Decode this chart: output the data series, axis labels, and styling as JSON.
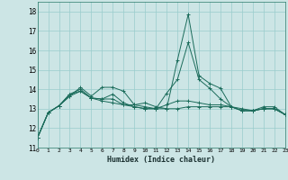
{
  "title": "",
  "xlabel": "Humidex (Indice chaleur)",
  "xlim": [
    0,
    23
  ],
  "ylim": [
    11,
    18.5
  ],
  "yticks": [
    11,
    12,
    13,
    14,
    15,
    16,
    17,
    18
  ],
  "xticks": [
    0,
    1,
    2,
    3,
    4,
    5,
    6,
    7,
    8,
    9,
    10,
    11,
    12,
    13,
    14,
    15,
    16,
    17,
    18,
    19,
    20,
    21,
    22,
    23
  ],
  "bg_color": "#cce5e5",
  "grid_color": "#99cccc",
  "line_color": "#1a6b5a",
  "lines": [
    [
      11.5,
      12.8,
      13.15,
      13.65,
      14.1,
      13.65,
      14.1,
      14.1,
      13.9,
      13.2,
      13.3,
      13.1,
      13.0,
      15.5,
      17.85,
      14.7,
      14.3,
      14.05,
      13.1,
      13.0,
      12.9,
      13.1,
      13.1,
      12.7
    ],
    [
      11.5,
      12.8,
      13.15,
      13.75,
      14.0,
      13.55,
      13.5,
      13.75,
      13.3,
      13.1,
      13.0,
      13.0,
      13.8,
      14.5,
      16.4,
      14.5,
      14.05,
      13.5,
      13.1,
      12.9,
      12.9,
      13.0,
      13.0,
      12.7
    ],
    [
      11.5,
      12.8,
      13.15,
      13.75,
      13.9,
      13.55,
      13.5,
      13.5,
      13.2,
      13.1,
      13.0,
      13.0,
      13.2,
      13.4,
      13.4,
      13.3,
      13.2,
      13.2,
      13.1,
      12.9,
      12.9,
      13.0,
      13.0,
      12.7
    ],
    [
      11.5,
      12.8,
      13.15,
      13.65,
      13.9,
      13.55,
      13.4,
      13.3,
      13.2,
      13.2,
      13.1,
      13.0,
      13.0,
      13.0,
      13.1,
      13.1,
      13.1,
      13.1,
      13.1,
      12.9,
      12.9,
      13.0,
      13.0,
      12.7
    ]
  ]
}
